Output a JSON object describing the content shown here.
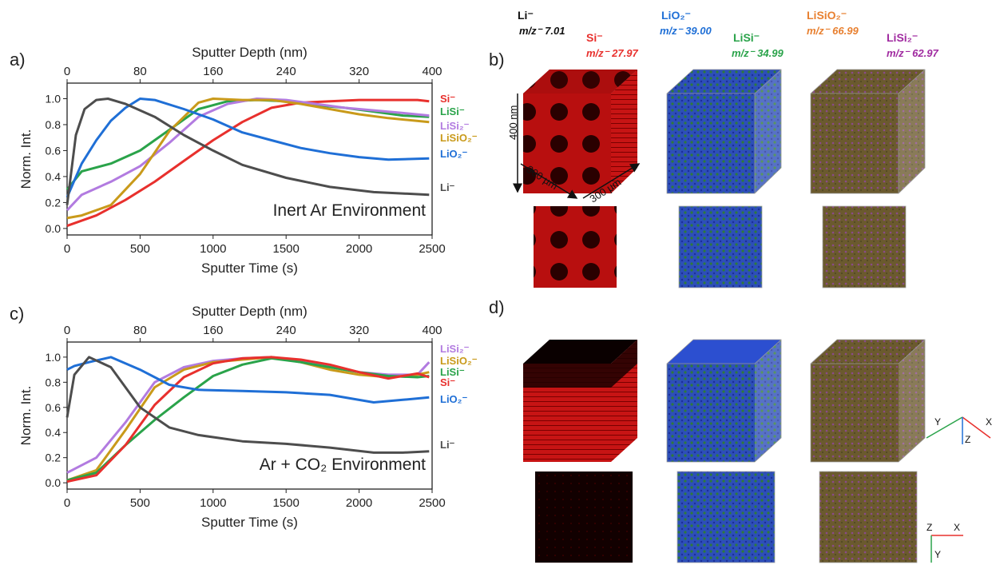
{
  "panels": {
    "a": "a)",
    "b": "b)",
    "c": "c)",
    "d": "d)"
  },
  "colors": {
    "Li": "#4d4d4d",
    "LiO2": "#1f6fd6",
    "LiSi": "#2aa34a",
    "LiSiO2": "#c99a1a",
    "Si": "#e8302d",
    "LiSi2": "#b27be0",
    "cube_red": "#cc1111",
    "cube_blue": "#2a3dbb",
    "cube_olive": "#6b5a2e"
  },
  "chart_data": [
    {
      "type": "line",
      "panel": "a",
      "xlabel": "Sputter Time (s)",
      "ylabel": "Norm. Int.",
      "top_axis_label": "Sputter Depth (nm)",
      "annotation": "Inert Ar Environment",
      "xlim": [
        0,
        2500
      ],
      "ylim": [
        -0.05,
        1.12
      ],
      "x_ticks": [
        "0",
        "500",
        "1000",
        "1500",
        "2000",
        "2500"
      ],
      "y_ticks": [
        "0.0",
        "0.2",
        "0.4",
        "0.6",
        "0.8",
        "1.0"
      ],
      "top_ticks": [
        "0",
        "80",
        "160",
        "240",
        "320",
        "400"
      ],
      "series": [
        {
          "name": "Si⁻",
          "color": "#e8302d",
          "x": [
            0,
            200,
            400,
            600,
            800,
            1000,
            1200,
            1400,
            1600,
            1800,
            2000,
            2200,
            2400,
            2480
          ],
          "y": [
            0.02,
            0.1,
            0.22,
            0.36,
            0.52,
            0.68,
            0.82,
            0.93,
            0.97,
            0.98,
            0.99,
            0.99,
            0.99,
            0.98
          ]
        },
        {
          "name": "LiSi⁻",
          "color": "#2aa34a",
          "x": [
            0,
            100,
            300,
            500,
            700,
            900,
            1100,
            1300,
            1500,
            1700,
            1900,
            2100,
            2300,
            2480
          ],
          "y": [
            0.3,
            0.44,
            0.5,
            0.6,
            0.76,
            0.92,
            0.98,
            0.99,
            0.98,
            0.95,
            0.93,
            0.9,
            0.87,
            0.86
          ]
        },
        {
          "name": "LiSi₂⁻",
          "color": "#b27be0",
          "x": [
            0,
            100,
            300,
            500,
            700,
            900,
            1100,
            1300,
            1500,
            1700,
            1900,
            2100,
            2300,
            2480
          ],
          "y": [
            0.14,
            0.26,
            0.36,
            0.48,
            0.66,
            0.86,
            0.96,
            1.0,
            0.99,
            0.96,
            0.93,
            0.91,
            0.89,
            0.87
          ]
        },
        {
          "name": "LiSiO₂⁻",
          "color": "#c99a1a",
          "x": [
            0,
            100,
            300,
            500,
            700,
            900,
            1000,
            1200,
            1400,
            1600,
            1800,
            2000,
            2200,
            2480
          ],
          "y": [
            0.08,
            0.1,
            0.18,
            0.42,
            0.75,
            0.97,
            1.0,
            0.99,
            0.99,
            0.96,
            0.92,
            0.88,
            0.85,
            0.82
          ]
        },
        {
          "name": "LiO₂⁻",
          "color": "#1f6fd6",
          "x": [
            0,
            100,
            200,
            300,
            400,
            500,
            600,
            800,
            1000,
            1200,
            1400,
            1600,
            1800,
            2000,
            2200,
            2480
          ],
          "y": [
            0.24,
            0.5,
            0.68,
            0.83,
            0.93,
            1.0,
            0.99,
            0.92,
            0.84,
            0.74,
            0.68,
            0.62,
            0.58,
            0.55,
            0.53,
            0.54
          ]
        },
        {
          "name": "Li⁻",
          "color": "#4d4d4d",
          "x": [
            0,
            60,
            120,
            200,
            280,
            400,
            600,
            800,
            1000,
            1200,
            1500,
            1800,
            2100,
            2480
          ],
          "y": [
            0.18,
            0.72,
            0.92,
            0.99,
            1.0,
            0.96,
            0.86,
            0.72,
            0.6,
            0.49,
            0.39,
            0.32,
            0.28,
            0.26
          ]
        }
      ]
    },
    {
      "type": "line",
      "panel": "c",
      "xlabel": "Sputter Time (s)",
      "ylabel": "Norm. Int.",
      "top_axis_label": "Sputter Depth (nm)",
      "annotation": "Ar + CO₂ Environment",
      "xlim": [
        0,
        2500
      ],
      "ylim": [
        -0.05,
        1.12
      ],
      "x_ticks": [
        "0",
        "500",
        "1000",
        "1500",
        "2000",
        "2500"
      ],
      "y_ticks": [
        "0.0",
        "0.2",
        "0.4",
        "0.6",
        "0.8",
        "1.0"
      ],
      "top_ticks": [
        "0",
        "80",
        "160",
        "240",
        "320",
        "400"
      ],
      "series": [
        {
          "name": "LiSi₂⁻",
          "color": "#b27be0",
          "x": [
            0,
            200,
            400,
            600,
            800,
            1000,
            1200,
            1400,
            1600,
            1800,
            2000,
            2200,
            2400,
            2480
          ],
          "y": [
            0.08,
            0.2,
            0.48,
            0.8,
            0.92,
            0.97,
            0.99,
            1.0,
            0.97,
            0.93,
            0.88,
            0.86,
            0.86,
            0.96
          ]
        },
        {
          "name": "LiSiO₂⁻",
          "color": "#c99a1a",
          "x": [
            0,
            200,
            400,
            600,
            800,
            1000,
            1200,
            1400,
            1600,
            1800,
            2000,
            2200,
            2400,
            2480
          ],
          "y": [
            0.02,
            0.1,
            0.42,
            0.76,
            0.9,
            0.96,
            0.98,
            1.0,
            0.96,
            0.9,
            0.86,
            0.84,
            0.86,
            0.88
          ]
        },
        {
          "name": "LiSi⁻",
          "color": "#2aa34a",
          "x": [
            0,
            200,
            400,
            600,
            800,
            1000,
            1200,
            1400,
            1600,
            1800,
            2000,
            2200,
            2400,
            2480
          ],
          "y": [
            0.02,
            0.08,
            0.3,
            0.5,
            0.68,
            0.85,
            0.94,
            0.99,
            0.96,
            0.92,
            0.88,
            0.85,
            0.84,
            0.85
          ]
        },
        {
          "name": "Si⁻",
          "color": "#e8302d",
          "x": [
            0,
            200,
            400,
            600,
            800,
            1000,
            1200,
            1400,
            1600,
            1800,
            2000,
            2200,
            2400,
            2480
          ],
          "y": [
            0.01,
            0.06,
            0.3,
            0.62,
            0.84,
            0.95,
            0.99,
            1.0,
            0.98,
            0.94,
            0.88,
            0.83,
            0.87,
            0.84
          ]
        },
        {
          "name": "LiO₂⁻",
          "color": "#1f6fd6",
          "x": [
            0,
            50,
            150,
            300,
            500,
            700,
            900,
            1200,
            1500,
            1800,
            2100,
            2300,
            2480
          ],
          "y": [
            0.9,
            0.93,
            0.96,
            1.0,
            0.9,
            0.78,
            0.74,
            0.73,
            0.72,
            0.7,
            0.64,
            0.66,
            0.68
          ]
        },
        {
          "name": "Li⁻",
          "color": "#4d4d4d",
          "x": [
            0,
            50,
            150,
            300,
            500,
            700,
            900,
            1200,
            1500,
            1800,
            2100,
            2300,
            2480
          ],
          "y": [
            0.52,
            0.86,
            1.0,
            0.92,
            0.6,
            0.44,
            0.38,
            0.33,
            0.31,
            0.28,
            0.24,
            0.24,
            0.25
          ]
        }
      ]
    }
  ],
  "species_headers": [
    {
      "name": "Li⁻",
      "mz": "m/z⁻ 7.01",
      "color": "#111111"
    },
    {
      "name": "Si⁻",
      "mz": "m/z⁻ 27.97",
      "color": "#e8302d"
    },
    {
      "name": "LiO₂⁻",
      "mz": "m/z⁻ 39.00",
      "color": "#1f6fd6"
    },
    {
      "name": "LiSi⁻",
      "mz": "m/z⁻ 34.99",
      "color": "#2aa34a"
    },
    {
      "name": "LiSiO₂⁻",
      "mz": "m/z⁻ 66.99",
      "color": "#e88030"
    },
    {
      "name": "LiSi₂⁻",
      "mz": "m/z⁻ 62.97",
      "color": "#a02aa0"
    }
  ],
  "cube_dims": {
    "depth": "400 nm",
    "width_left": "300 µm",
    "width_right": "300 µm"
  },
  "axes_3d": {
    "x": "X",
    "y": "Y",
    "z": "Z"
  }
}
